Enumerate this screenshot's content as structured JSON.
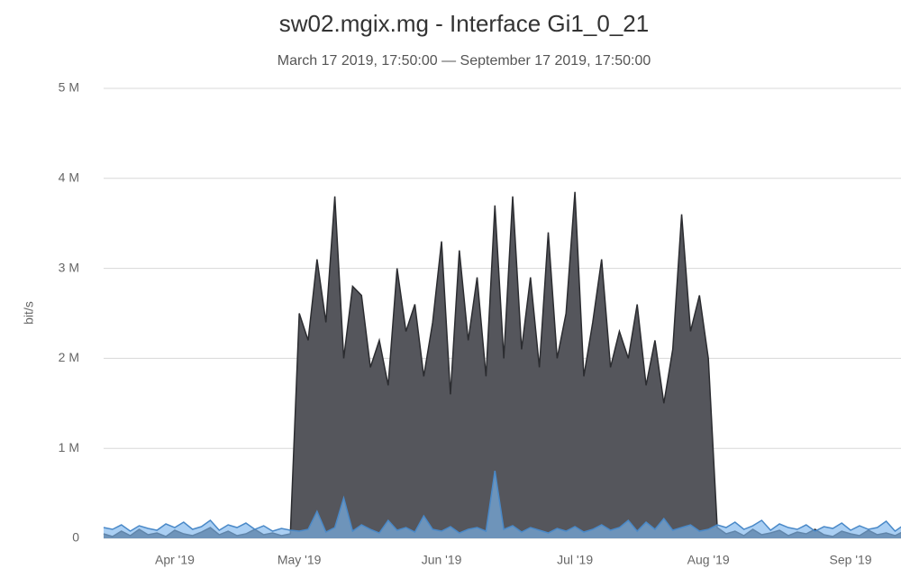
{
  "chart_data": {
    "type": "area",
    "title": "sw02.mgix.mg - Interface Gi1_0_21",
    "subtitle": "March 17 2019, 17:50:00 — September 17 2019, 17:50:00",
    "y_label": "bit/s",
    "categories": [
      null,
      null,
      null,
      null,
      null,
      null,
      null,
      null,
      "Apr '19",
      null,
      null,
      null,
      null,
      null,
      null,
      null,
      null,
      null,
      null,
      null,
      null,
      null,
      "May '19",
      null,
      null,
      null,
      null,
      null,
      null,
      null,
      null,
      null,
      null,
      null,
      null,
      null,
      null,
      null,
      "Jun '19",
      null,
      null,
      null,
      null,
      null,
      null,
      null,
      null,
      null,
      null,
      null,
      null,
      null,
      null,
      "Jul '19",
      null,
      null,
      null,
      null,
      null,
      null,
      null,
      null,
      null,
      null,
      null,
      null,
      null,
      null,
      "Aug '19",
      null,
      null,
      null,
      null,
      null,
      null,
      null,
      null,
      null,
      null,
      null,
      null,
      null,
      null,
      null,
      "Sep '19",
      null,
      null,
      null,
      null,
      null,
      null,
      null,
      null
    ],
    "series": [
      {
        "color": "#55565c",
        "line_color": "#2b2c30",
        "values": [
          0.05,
          0.02,
          0.08,
          0.03,
          0.1,
          0.04,
          0.06,
          0.02,
          0.09,
          0.05,
          0.03,
          0.07,
          0.12,
          0.04,
          0.08,
          0.03,
          0.05,
          0.1,
          0.04,
          0.06,
          0.03,
          0.05,
          2.5,
          2.2,
          3.1,
          2.4,
          3.8,
          2.0,
          2.8,
          2.7,
          1.9,
          2.2,
          1.7,
          3.0,
          2.3,
          2.6,
          1.8,
          2.4,
          3.3,
          1.6,
          3.2,
          2.2,
          2.9,
          1.8,
          3.7,
          2.0,
          3.8,
          2.1,
          2.9,
          1.9,
          3.4,
          2.0,
          2.5,
          3.85,
          1.8,
          2.4,
          3.1,
          1.9,
          2.3,
          2.0,
          2.6,
          1.7,
          2.2,
          1.5,
          2.1,
          3.6,
          2.3,
          2.7,
          2.0,
          0.12,
          0.05,
          0.08,
          0.03,
          0.1,
          0.04,
          0.06,
          0.09,
          0.03,
          0.07,
          0.05,
          0.1,
          0.04,
          0.02,
          0.08,
          0.05,
          0.03,
          0.09,
          0.04,
          0.06,
          0.03,
          0.08,
          0.05,
          0.04
        ]
      },
      {
        "color": "#7cb5ec",
        "line_color": "#4a89c8",
        "values": [
          0.12,
          0.1,
          0.15,
          0.08,
          0.14,
          0.11,
          0.09,
          0.16,
          0.12,
          0.18,
          0.1,
          0.13,
          0.2,
          0.09,
          0.15,
          0.12,
          0.17,
          0.1,
          0.14,
          0.08,
          0.11,
          0.09,
          0.08,
          0.1,
          0.3,
          0.07,
          0.12,
          0.45,
          0.08,
          0.15,
          0.1,
          0.06,
          0.2,
          0.09,
          0.12,
          0.07,
          0.25,
          0.1,
          0.08,
          0.13,
          0.06,
          0.1,
          0.12,
          0.08,
          0.75,
          0.1,
          0.14,
          0.07,
          0.12,
          0.09,
          0.06,
          0.11,
          0.08,
          0.13,
          0.07,
          0.1,
          0.15,
          0.09,
          0.12,
          0.2,
          0.08,
          0.18,
          0.1,
          0.22,
          0.09,
          0.12,
          0.15,
          0.08,
          0.1,
          0.15,
          0.12,
          0.18,
          0.1,
          0.14,
          0.2,
          0.09,
          0.16,
          0.12,
          0.1,
          0.15,
          0.08,
          0.13,
          0.11,
          0.17,
          0.09,
          0.14,
          0.1,
          0.12,
          0.19,
          0.08,
          0.15,
          0.22,
          0.1
        ]
      }
    ],
    "ylim": [
      0,
      5
    ],
    "yticks": [
      0,
      {
        "value": 1,
        "label": "1 M"
      },
      {
        "value": 2,
        "label": "2 M"
      },
      {
        "value": 3,
        "label": "3 M"
      },
      {
        "value": 4,
        "label": "4 M"
      },
      {
        "value": 5,
        "label": "5 M"
      }
    ],
    "grid": true
  }
}
